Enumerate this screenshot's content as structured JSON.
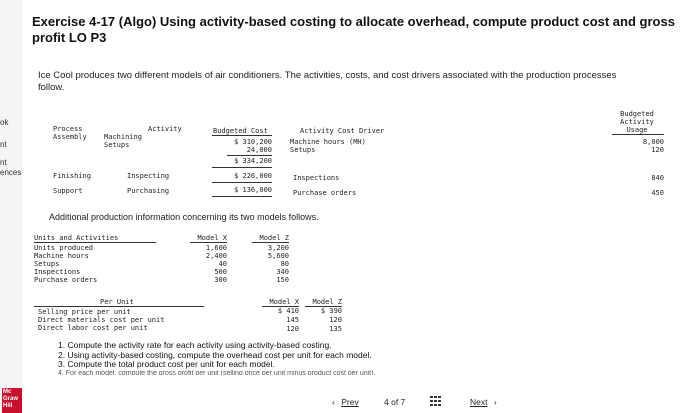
{
  "leftnav": {
    "items": [
      "ok",
      "nt",
      "nt",
      "ences"
    ],
    "logo": [
      "Mc",
      "Graw",
      "Hill"
    ]
  },
  "title": "Exercise 4-17 (Algo) Using activity-based costing to allocate overhead, compute product cost and gross profit LO P3",
  "intro": "Ice Cool produces two different models of air conditioners. The activities, costs, and cost drivers associated with the production processes follow.",
  "t1": {
    "h_budgeted_cost": "Budgeted Cost",
    "h_activity": "Activity",
    "h_driver": "Activity Cost Driver",
    "h_budgeted_activity": [
      "Budgeted",
      "Activity",
      "Usage"
    ],
    "process_assembly": [
      "Process",
      "Assembly"
    ],
    "machining": "Machining",
    "setups": "Setups",
    "cost_machining": "$ 310,200",
    "cost_setups": "24,000",
    "cost_assembly_total": "$ 334,200",
    "driver_machining": "Machine hours (MH)",
    "driver_setups": "Setups",
    "usage_machining": "8,000",
    "usage_setups": "120",
    "finishing": "Finishing",
    "inspecting": "Inspecting",
    "cost_inspecting": "$ 226,000",
    "driver_inspecting": "Inspections",
    "usage_inspecting": "840",
    "support": "Support",
    "purchasing": "Purchasing",
    "cost_purchasing": "$ 136,000",
    "driver_purchasing": "Purchase orders",
    "usage_purchasing": "450"
  },
  "additional": "Additional production information concerning its two models follows.",
  "t2": {
    "h_units": "Units and Activities",
    "h_model_x": "Model X",
    "h_model_z": "Model Z",
    "rows": [
      {
        "label": "Units produced",
        "x": "1,600",
        "z": "3,200"
      },
      {
        "label": "Machine hours",
        "x": "2,400",
        "z": "5,600"
      },
      {
        "label": "Setups",
        "x": "40",
        "z": "80"
      },
      {
        "label": "Inspections",
        "x": "500",
        "z": "340"
      },
      {
        "label": "Purchase orders",
        "x": "300",
        "z": "150"
      }
    ]
  },
  "t3": {
    "h_per_unit": "Per Unit",
    "h_model_x": "Model X",
    "h_model_z": "Model Z",
    "rows": [
      {
        "label": "Selling price per unit",
        "x": "$ 410",
        "z": "$ 390"
      },
      {
        "label": "Direct materials cost per unit",
        "x": "145",
        "z": "120"
      },
      {
        "label": "Direct labor cost per unit",
        "x": "120",
        "z": "135"
      }
    ]
  },
  "questions": [
    "1. Compute the activity rate for each activity using activity-based costing.",
    "2. Using activity-based costing, compute the overhead cost per unit for each model.",
    "3. Compute the total product cost per unit for each model.",
    "4. For each model, compute the gross profit per unit (selling price per unit minus product cost per unit)."
  ],
  "pager": {
    "prev": "Prev",
    "position": "4 of 7",
    "next": "Next"
  }
}
